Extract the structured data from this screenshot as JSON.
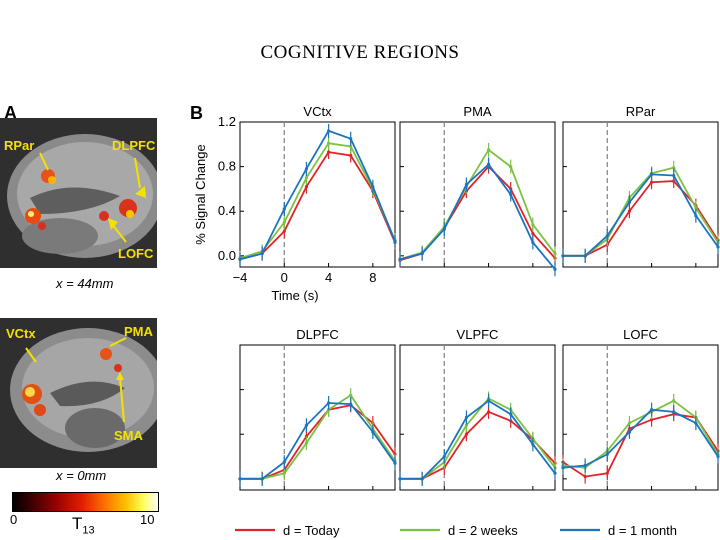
{
  "slide": {
    "title": "COGNITIVE REGIONS"
  },
  "panelA": {
    "letter": "A",
    "top_image": {
      "labels": [
        "RPar",
        "DLPFC",
        "LOFC"
      ],
      "caption": "x = 44mm"
    },
    "bottom_image": {
      "labels": [
        "VCtx",
        "PMA",
        "SMA"
      ],
      "caption": "x = 0mm"
    },
    "colorbar": {
      "min": "0",
      "max": "10",
      "variable": "T",
      "subscript": "13"
    }
  },
  "panelB": {
    "letter": "B"
  },
  "colors": {
    "today": "#e2232a",
    "two_weeks": "#7cc242",
    "one_month": "#1c75bc",
    "stim_line": "#888888"
  },
  "chart_data": {
    "type": "line",
    "title": "",
    "xlabel": "Time (s)",
    "ylabel": "% Signal Change",
    "x": [
      -4,
      -2,
      0,
      2,
      4,
      6,
      8,
      10
    ],
    "xlim": [
      -4,
      10
    ],
    "ylim": [
      -0.1,
      1.2
    ],
    "xticks": [
      "−4",
      "0",
      "4",
      "8"
    ],
    "yticks": [
      "0.0",
      "0.4",
      "0.8",
      "1.2"
    ],
    "stimulus_onset": 0,
    "legend": [
      {
        "key": "today",
        "label": "d = Today"
      },
      {
        "key": "two_weeks",
        "label": "d = 2 weeks"
      },
      {
        "key": "one_month",
        "label": "d = 1 month"
      }
    ],
    "panels": [
      {
        "name": "VCtx",
        "today": [
          -0.03,
          0.02,
          0.22,
          0.62,
          0.93,
          0.9,
          0.58,
          0.12
        ],
        "two_weeks": [
          -0.02,
          0.04,
          0.3,
          0.7,
          1.01,
          0.98,
          0.6,
          0.14
        ],
        "one_month": [
          -0.03,
          0.02,
          0.42,
          0.78,
          1.12,
          1.05,
          0.62,
          0.13
        ]
      },
      {
        "name": "PMA",
        "today": [
          -0.04,
          0.02,
          0.25,
          0.58,
          0.8,
          0.6,
          0.2,
          -0.02
        ],
        "two_weeks": [
          -0.03,
          0.03,
          0.26,
          0.62,
          0.95,
          0.8,
          0.28,
          0.02
        ],
        "one_month": [
          -0.03,
          0.02,
          0.24,
          0.64,
          0.82,
          0.55,
          0.12,
          -0.12
        ]
      },
      {
        "name": "RPar",
        "today": [
          0.0,
          0.0,
          0.1,
          0.4,
          0.66,
          0.67,
          0.45,
          0.14
        ],
        "two_weeks": [
          0.0,
          0.0,
          0.15,
          0.52,
          0.74,
          0.79,
          0.43,
          0.12
        ],
        "one_month": [
          0.0,
          0.0,
          0.18,
          0.48,
          0.73,
          0.72,
          0.36,
          0.08
        ]
      },
      {
        "name": "DLPFC",
        "today": [
          0.0,
          0.0,
          0.08,
          0.38,
          0.62,
          0.66,
          0.5,
          0.22
        ],
        "two_weeks": [
          0.0,
          0.0,
          0.05,
          0.32,
          0.62,
          0.75,
          0.45,
          0.16
        ],
        "one_month": [
          0.0,
          0.0,
          0.15,
          0.48,
          0.68,
          0.67,
          0.42,
          0.14
        ]
      },
      {
        "name": "VLPFC",
        "today": [
          0.0,
          0.0,
          0.1,
          0.4,
          0.6,
          0.52,
          0.35,
          0.14
        ],
        "two_weeks": [
          0.0,
          0.0,
          0.15,
          0.48,
          0.72,
          0.62,
          0.36,
          0.1
        ],
        "one_month": [
          0.0,
          0.0,
          0.2,
          0.55,
          0.7,
          0.58,
          0.31,
          0.05
        ]
      },
      {
        "name": "LOFC",
        "today": [
          0.15,
          0.02,
          0.05,
          0.45,
          0.53,
          0.58,
          0.55,
          0.25
        ],
        "two_weeks": [
          0.12,
          0.1,
          0.25,
          0.5,
          0.6,
          0.7,
          0.55,
          0.22
        ],
        "one_month": [
          0.1,
          0.12,
          0.22,
          0.42,
          0.62,
          0.6,
          0.5,
          0.2
        ]
      }
    ]
  }
}
